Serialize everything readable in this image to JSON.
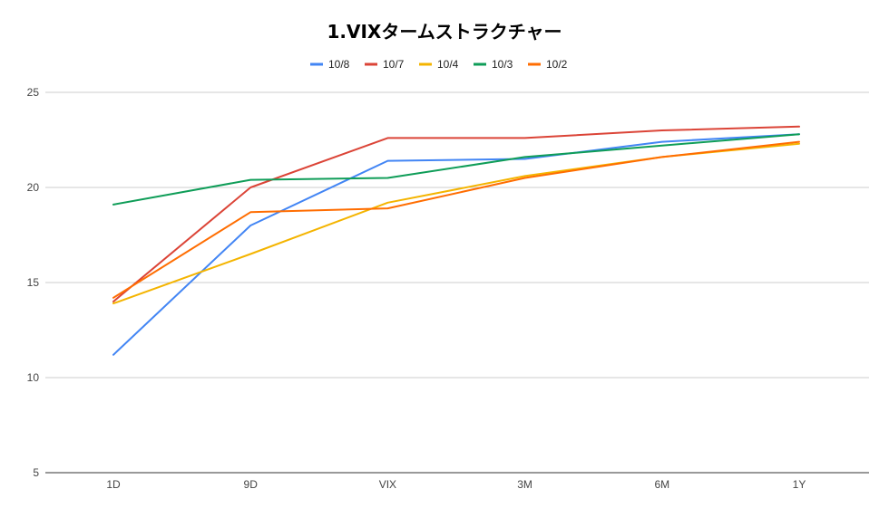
{
  "chart_data": {
    "type": "line",
    "title": "1.VIXタームストラクチャー",
    "xlabel": "",
    "ylabel": "",
    "categories": [
      "1D",
      "9D",
      "VIX",
      "3M",
      "6M",
      "1Y"
    ],
    "ylim": [
      5,
      25
    ],
    "yticks": [
      5,
      10,
      15,
      20,
      25
    ],
    "grid": true,
    "legend_position": "top",
    "series": [
      {
        "name": "10/8",
        "color": "#4285f4",
        "values": [
          11.2,
          18.0,
          21.4,
          21.5,
          22.4,
          22.8
        ]
      },
      {
        "name": "10/7",
        "color": "#db4437",
        "values": [
          14.0,
          20.0,
          22.6,
          22.6,
          23.0,
          23.2
        ]
      },
      {
        "name": "10/4",
        "color": "#f4b400",
        "values": [
          13.9,
          16.5,
          19.2,
          20.6,
          21.6,
          22.3
        ]
      },
      {
        "name": "10/3",
        "color": "#0f9d58",
        "values": [
          19.1,
          20.4,
          20.5,
          21.6,
          22.2,
          22.8
        ]
      },
      {
        "name": "10/2",
        "color": "#ff6d01",
        "values": [
          14.2,
          18.7,
          18.9,
          20.5,
          21.6,
          22.4
        ]
      }
    ]
  }
}
